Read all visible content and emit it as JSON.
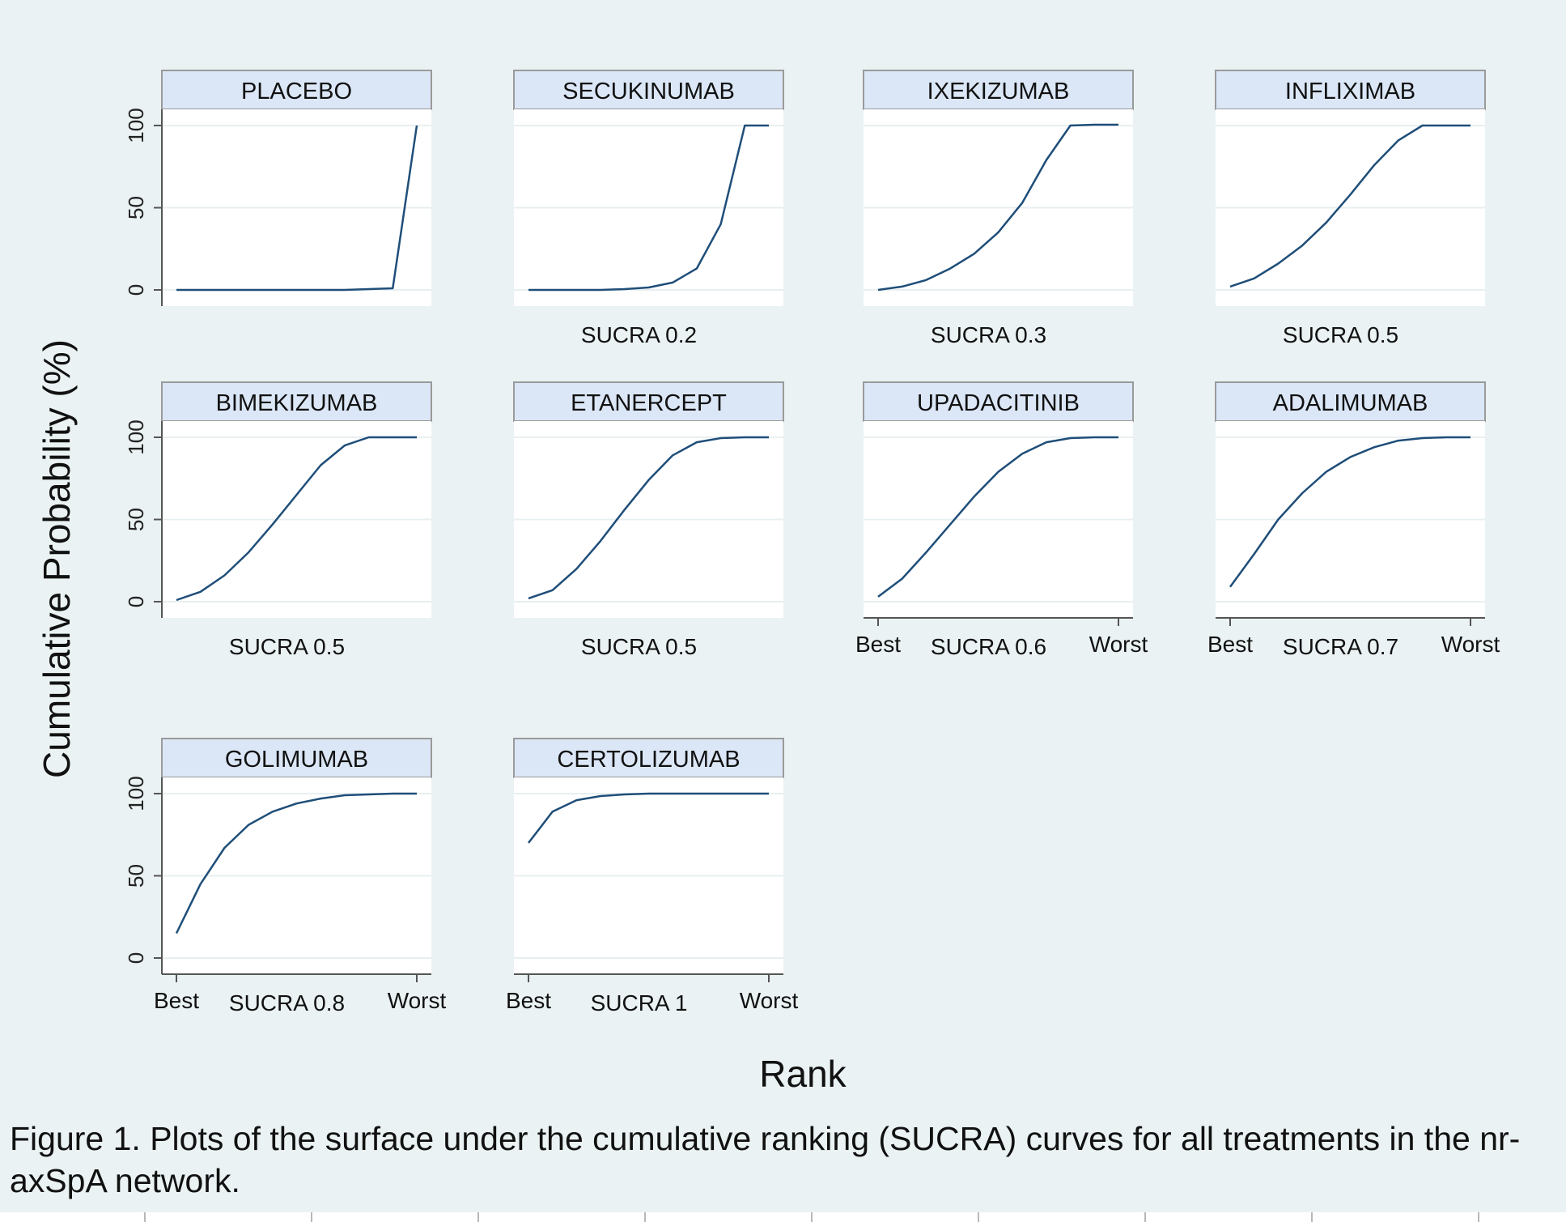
{
  "figure": {
    "y_axis_title": "Cumulative Probability (%)",
    "x_axis_title": "Rank",
    "caption": "Figure 1. Plots of the surface under the cumulative ranking (SUCRA) curves for all treatments in the nr-axSpA network."
  },
  "colors": {
    "background": "#eaf2f3",
    "plot_area": "#ffffff",
    "header": "#dbe7f7",
    "line": "#1f4e79",
    "grid": "#e8eff0"
  },
  "chart_data": [
    {
      "type": "line",
      "title": "PLACEBO",
      "sucra_label": "",
      "y_ticks": [
        0,
        50,
        100
      ],
      "x_tick_labels": [],
      "ylim": [
        0,
        100
      ],
      "values": [
        0,
        0,
        0,
        0,
        0,
        0,
        0,
        0,
        0.5,
        1,
        100
      ],
      "grid": true
    },
    {
      "type": "line",
      "title": "SECUKINUMAB",
      "sucra_label": "SUCRA 0.2",
      "y_ticks": [],
      "x_tick_labels": [],
      "ylim": [
        0,
        100
      ],
      "values": [
        0,
        0,
        0,
        0,
        0.5,
        1.5,
        4.5,
        13,
        40,
        100,
        100
      ],
      "grid": true
    },
    {
      "type": "line",
      "title": "IXEKIZUMAB",
      "sucra_label": "SUCRA 0.3",
      "y_ticks": [],
      "x_tick_labels": [],
      "ylim": [
        0,
        100
      ],
      "values": [
        0,
        2,
        6,
        13,
        22,
        35,
        53,
        79,
        100,
        100.5,
        100.5
      ],
      "grid": true
    },
    {
      "type": "line",
      "title": "INFLIXIMAB",
      "sucra_label": "SUCRA 0.5",
      "y_ticks": [],
      "x_tick_labels": [],
      "ylim": [
        0,
        100
      ],
      "values": [
        2,
        7,
        16,
        27,
        41,
        58,
        76,
        91,
        100,
        100,
        100
      ],
      "grid": true
    },
    {
      "type": "line",
      "title": "BIMEKIZUMAB",
      "sucra_label": "SUCRA 0.5",
      "y_ticks": [
        0,
        50,
        100
      ],
      "x_tick_labels": [],
      "ylim": [
        0,
        100
      ],
      "values": [
        1,
        6,
        16,
        30,
        47,
        65,
        83,
        95,
        100,
        100,
        100
      ],
      "grid": true
    },
    {
      "type": "line",
      "title": "ETANERCEPT",
      "sucra_label": "SUCRA 0.5",
      "y_ticks": [],
      "x_tick_labels": [],
      "ylim": [
        0,
        100
      ],
      "values": [
        2,
        7,
        20,
        37,
        56,
        74,
        89,
        97,
        99.5,
        100,
        100
      ],
      "grid": true
    },
    {
      "type": "line",
      "title": "UPADACITINIB",
      "sucra_label": "SUCRA 0.6",
      "y_ticks": [],
      "x_tick_labels": [
        "Best",
        "Worst"
      ],
      "ylim": [
        0,
        100
      ],
      "values": [
        3,
        14,
        30,
        47,
        64,
        79,
        90,
        97,
        99.5,
        100,
        100
      ],
      "grid": true
    },
    {
      "type": "line",
      "title": "ADALIMUMAB",
      "sucra_label": "SUCRA 0.7",
      "y_ticks": [],
      "x_tick_labels": [
        "Best",
        "Worst"
      ],
      "ylim": [
        0,
        100
      ],
      "values": [
        9,
        29,
        50,
        66,
        79,
        88,
        94,
        98,
        99.5,
        100,
        100
      ],
      "grid": true
    },
    {
      "type": "line",
      "title": "GOLIMUMAB",
      "sucra_label": "SUCRA 0.8",
      "y_ticks": [
        0,
        50,
        100
      ],
      "x_tick_labels": [
        "Best",
        "Worst"
      ],
      "ylim": [
        0,
        100
      ],
      "values": [
        15,
        45,
        67,
        81,
        89,
        94,
        97,
        99,
        99.5,
        100,
        100
      ],
      "grid": true
    },
    {
      "type": "line",
      "title": "CERTOLIZUMAB",
      "sucra_label": "SUCRA 1",
      "y_ticks": [],
      "x_tick_labels": [
        "Best",
        "Worst"
      ],
      "ylim": [
        0,
        100
      ],
      "values": [
        70,
        89,
        96,
        98.5,
        99.5,
        100,
        100,
        100,
        100,
        100,
        100
      ],
      "grid": true
    }
  ]
}
